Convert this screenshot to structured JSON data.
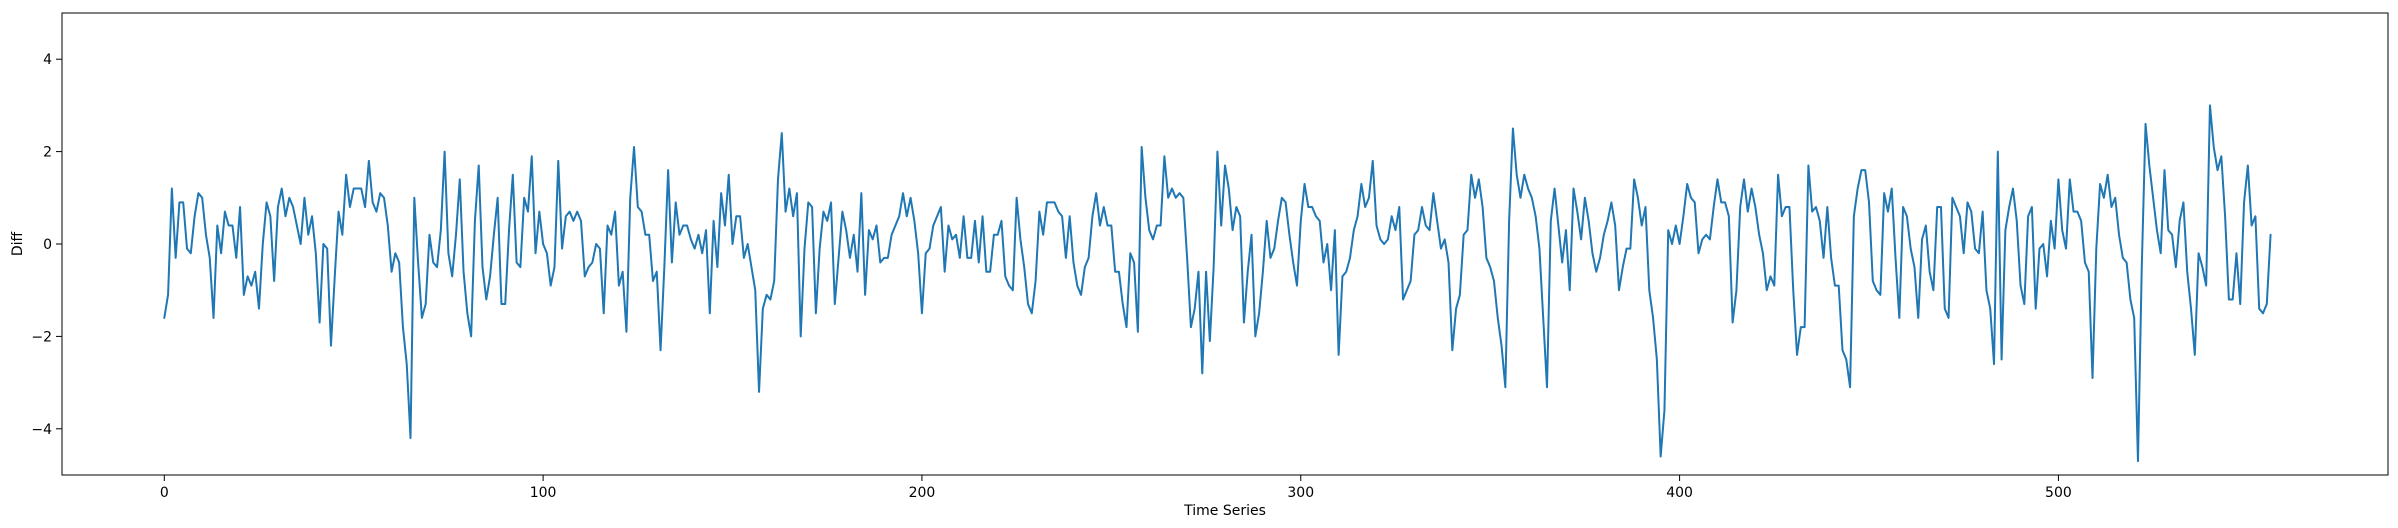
{
  "chart_data": {
    "type": "line",
    "xlabel": "Time Series",
    "ylabel": "Diff",
    "xlim": [
      -27,
      587
    ],
    "ylim": [
      -5,
      5
    ],
    "x_ticks": [
      0,
      100,
      200,
      300,
      400,
      500
    ],
    "y_ticks": [
      -4,
      -2,
      0,
      2,
      4
    ],
    "x_tick_labels": [
      "0",
      "100",
      "200",
      "300",
      "400",
      "500"
    ],
    "y_tick_labels": [
      "−4",
      "−2",
      "0",
      "2",
      "4"
    ],
    "grid": false,
    "legend": "none",
    "series": [
      {
        "color": "#1f77b4",
        "x_start": 0,
        "x_step": 1,
        "values": [
          -1.6,
          -1.1,
          1.2,
          -0.3,
          0.9,
          0.9,
          -0.1,
          -0.2,
          0.6,
          1.1,
          1.0,
          0.2,
          -0.3,
          -1.6,
          0.4,
          -0.2,
          0.7,
          0.4,
          0.4,
          -0.3,
          0.8,
          -1.1,
          -0.7,
          -0.9,
          -0.6,
          -1.4,
          0.0,
          0.9,
          0.6,
          -0.8,
          0.8,
          1.2,
          0.6,
          1.0,
          0.8,
          0.4,
          0.0,
          1.0,
          0.2,
          0.6,
          -0.2,
          -1.7,
          0.0,
          -0.1,
          -2.2,
          -0.7,
          0.7,
          0.2,
          1.5,
          0.8,
          1.2,
          1.2,
          1.2,
          0.8,
          1.8,
          0.9,
          0.7,
          1.1,
          1.0,
          0.4,
          -0.6,
          -0.2,
          -0.4,
          -1.8,
          -2.6,
          -4.2,
          1.0,
          -0.4,
          -1.6,
          -1.3,
          0.2,
          -0.4,
          -0.5,
          0.3,
          2.0,
          -0.2,
          -0.7,
          0.2,
          1.4,
          -0.6,
          -1.5,
          -2.0,
          0.5,
          1.7,
          -0.5,
          -1.2,
          -0.7,
          0.2,
          1.0,
          -1.3,
          -1.3,
          0.3,
          1.5,
          -0.4,
          -0.5,
          1.0,
          0.7,
          1.9,
          -0.2,
          0.7,
          0.0,
          -0.2,
          -0.9,
          -0.5,
          1.8,
          -0.1,
          0.6,
          0.7,
          0.5,
          0.7,
          0.5,
          -0.7,
          -0.5,
          -0.4,
          0.0,
          -0.1,
          -1.5,
          0.4,
          0.2,
          0.7,
          -0.9,
          -0.6,
          -1.9,
          1.0,
          2.1,
          0.8,
          0.7,
          0.2,
          0.2,
          -0.8,
          -0.6,
          -2.3,
          -0.5,
          1.6,
          -0.4,
          0.9,
          0.2,
          0.4,
          0.4,
          0.1,
          -0.1,
          0.2,
          -0.2,
          0.3,
          -1.5,
          0.5,
          -0.5,
          1.1,
          0.4,
          1.5,
          0.0,
          0.6,
          0.6,
          -0.3,
          0.0,
          -0.5,
          -1.0,
          -3.2,
          -1.4,
          -1.1,
          -1.2,
          -0.8,
          1.4,
          2.4,
          0.7,
          1.2,
          0.6,
          1.1,
          -2.0,
          -0.1,
          0.9,
          0.8,
          -1.5,
          -0.1,
          0.7,
          0.5,
          0.9,
          -1.3,
          -0.3,
          0.7,
          0.3,
          -0.3,
          0.2,
          -0.6,
          1.1,
          -1.1,
          0.3,
          0.1,
          0.4,
          -0.4,
          -0.3,
          -0.3,
          0.2,
          0.4,
          0.6,
          1.1,
          0.6,
          1.0,
          0.5,
          -0.2,
          -1.5,
          -0.2,
          -0.1,
          0.4,
          0.6,
          0.8,
          -0.6,
          0.4,
          0.1,
          0.2,
          -0.3,
          0.6,
          -0.3,
          -0.3,
          0.5,
          -0.4,
          0.6,
          -0.6,
          -0.6,
          0.2,
          0.2,
          0.5,
          -0.7,
          -0.9,
          -1.0,
          1.0,
          0.1,
          -0.5,
          -1.3,
          -1.5,
          -0.8,
          0.7,
          0.2,
          0.9,
          0.9,
          0.9,
          0.7,
          0.6,
          -0.3,
          0.6,
          -0.4,
          -0.9,
          -1.1,
          -0.5,
          -0.3,
          0.6,
          1.1,
          0.4,
          0.8,
          0.4,
          0.4,
          -0.6,
          -0.6,
          -1.3,
          -1.8,
          -0.2,
          -0.4,
          -1.9,
          2.1,
          1.0,
          0.3,
          0.1,
          0.4,
          0.4,
          1.9,
          1.0,
          1.2,
          1.0,
          1.1,
          1.0,
          -0.3,
          -1.8,
          -1.4,
          -0.6,
          -2.8,
          -0.6,
          -2.1,
          -0.5,
          2.0,
          0.4,
          1.7,
          1.2,
          0.3,
          0.8,
          0.6,
          -1.7,
          -0.6,
          0.2,
          -2.0,
          -1.5,
          -0.6,
          0.5,
          -0.3,
          -0.1,
          0.5,
          1.0,
          0.9,
          0.2,
          -0.4,
          -0.9,
          0.5,
          1.3,
          0.8,
          0.8,
          0.6,
          0.5,
          -0.4,
          0.0,
          -1.0,
          0.3,
          -2.4,
          -0.7,
          -0.6,
          -0.3,
          0.3,
          0.6,
          1.3,
          0.8,
          1.0,
          1.8,
          0.4,
          0.1,
          0.0,
          0.1,
          0.6,
          0.3,
          0.8,
          -1.2,
          -1.0,
          -0.8,
          0.2,
          0.3,
          0.8,
          0.4,
          0.3,
          1.1,
          0.5,
          -0.1,
          0.1,
          -0.4,
          -2.3,
          -1.4,
          -1.1,
          0.2,
          0.3,
          1.5,
          1.0,
          1.4,
          0.8,
          -0.3,
          -0.5,
          -0.8,
          -1.6,
          -2.2,
          -3.1,
          0.5,
          2.5,
          1.5,
          1.0,
          1.5,
          1.2,
          1.0,
          0.6,
          -0.1,
          -1.6,
          -3.1,
          0.5,
          1.2,
          0.4,
          -0.4,
          0.3,
          -1.0,
          1.2,
          0.7,
          0.1,
          1.0,
          0.5,
          -0.2,
          -0.6,
          -0.3,
          0.2,
          0.5,
          0.9,
          0.4,
          -1.0,
          -0.5,
          -0.1,
          -0.1,
          1.4,
          1.0,
          0.4,
          0.8,
          -1.0,
          -1.6,
          -2.5,
          -4.6,
          -3.6,
          0.3,
          0.0,
          0.4,
          0.0,
          0.6,
          1.3,
          1.0,
          0.9,
          -0.2,
          0.1,
          0.2,
          0.1,
          0.8,
          1.4,
          0.9,
          0.9,
          0.6,
          -1.7,
          -1.0,
          0.8,
          1.4,
          0.7,
          1.2,
          0.8,
          0.2,
          -0.2,
          -1.0,
          -0.7,
          -0.9,
          1.5,
          0.6,
          0.8,
          0.8,
          -1.0,
          -2.4,
          -1.8,
          -1.8,
          1.7,
          0.7,
          0.8,
          0.5,
          -0.3,
          0.8,
          -0.3,
          -0.9,
          -0.9,
          -2.3,
          -2.5,
          -3.1,
          0.6,
          1.2,
          1.6,
          1.6,
          0.9,
          -0.8,
          -1.0,
          -1.1,
          1.1,
          0.7,
          1.2,
          -0.3,
          -1.6,
          0.8,
          0.6,
          -0.1,
          -0.5,
          -1.6,
          0.1,
          0.4,
          -0.6,
          -1.0,
          0.8,
          0.8,
          -1.4,
          -1.6,
          1.0,
          0.8,
          0.6,
          -0.2,
          0.9,
          0.7,
          -0.1,
          -0.2,
          0.7,
          -1.0,
          -1.4,
          -2.6,
          2.0,
          -2.5,
          0.3,
          0.8,
          1.2,
          0.5,
          -0.9,
          -1.3,
          0.6,
          0.8,
          -1.4,
          -0.1,
          0.0,
          -0.7,
          0.5,
          -0.1,
          1.4,
          0.3,
          -0.1,
          1.4,
          0.7,
          0.7,
          0.5,
          -0.4,
          -0.6,
          -2.9,
          -0.1,
          1.3,
          1.0,
          1.5,
          0.8,
          1.0,
          0.2,
          -0.3,
          -0.4,
          -1.2,
          -1.6,
          -4.7,
          -0.5,
          2.6,
          1.7,
          1.0,
          0.3,
          -0.2,
          1.6,
          0.3,
          0.2,
          -0.5,
          0.5,
          0.9,
          -0.6,
          -1.4,
          -2.4,
          -0.2,
          -0.5,
          -0.9,
          3.0,
          2.1,
          1.6,
          1.9,
          0.6,
          -1.2,
          -1.2,
          -0.2,
          -1.3,
          0.9,
          1.7,
          0.4,
          0.6,
          -1.4,
          -1.5,
          -1.3,
          0.2
        ]
      }
    ]
  }
}
